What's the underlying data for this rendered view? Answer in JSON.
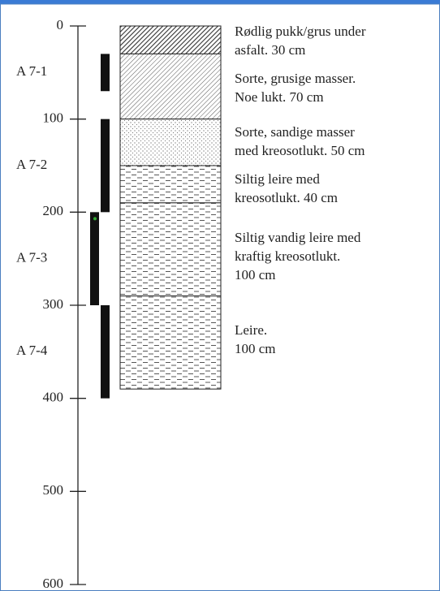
{
  "axis": {
    "ylim": [
      0,
      600
    ],
    "yticks": [
      0,
      100,
      200,
      300,
      400,
      500,
      600
    ]
  },
  "samples": [
    {
      "label": "A 7-1",
      "top": 30,
      "bottom": 70
    },
    {
      "label": "A 7-2",
      "top": 100,
      "bottom": 200
    },
    {
      "label": "A 7-3",
      "top": 200,
      "bottom": 300
    },
    {
      "label": "A 7-4",
      "top": 300,
      "bottom": 400
    }
  ],
  "layers": [
    {
      "thickness": 30,
      "pattern": "dense-hatch",
      "lines": [
        "Rødlig pukk/grus under",
        "asfalt. 30 cm"
      ]
    },
    {
      "thickness": 70,
      "pattern": "hatch",
      "lines": [
        "Sorte, grusige masser.",
        "Noe lukt. 70 cm"
      ]
    },
    {
      "thickness": 50,
      "pattern": "dots",
      "lines": [
        "Sorte, sandige masser",
        "med kreosotlukt. 50 cm"
      ]
    },
    {
      "thickness": 40,
      "pattern": "dashes",
      "lines": [
        "Siltig leire med",
        "kreosotlukt. 40 cm"
      ]
    },
    {
      "thickness": 100,
      "pattern": "dashes",
      "lines": [
        "Siltig vandig leire med",
        "kraftig kreosotlukt.",
        "100 cm"
      ]
    },
    {
      "thickness": 100,
      "pattern": "dashes",
      "lines": [
        "Leire.",
        "100 cm"
      ]
    }
  ]
}
